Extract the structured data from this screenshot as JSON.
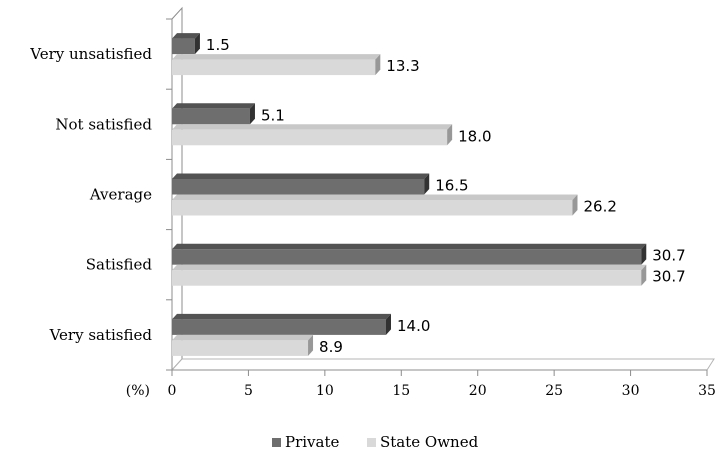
{
  "chart_data": {
    "type": "bar",
    "orientation": "horizontal",
    "style": "3d",
    "categories": [
      "Very unsatisfied",
      "Not satisfied",
      "Average",
      "Satisfied",
      "Very satisfied"
    ],
    "series": [
      {
        "name": "Private",
        "values": [
          1.5,
          5.1,
          16.5,
          30.7,
          14.0
        ],
        "labels": [
          "1.5",
          "5.1",
          "16.5",
          "30.7",
          "14.0"
        ],
        "color": "#6e6e6e"
      },
      {
        "name": "State Owned",
        "values": [
          13.3,
          18.0,
          26.2,
          30.7,
          8.9
        ],
        "labels": [
          "13.3",
          "18.0",
          "26.2",
          "30.7",
          "8.9"
        ],
        "color": "#d9d9d9"
      }
    ],
    "x_ticks": [
      0,
      5,
      10,
      15,
      20,
      25,
      30,
      35
    ],
    "xlim": [
      0,
      35
    ],
    "xlabel": "(%)",
    "grid": false,
    "legend_position": "bottom"
  }
}
